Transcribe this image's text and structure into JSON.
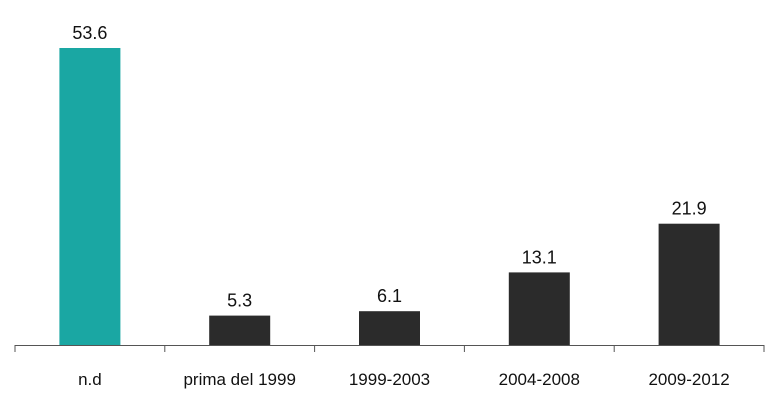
{
  "chart_data": {
    "type": "bar",
    "categories": [
      "n.d",
      "prima del 1999",
      "1999-2003",
      "2004-2008",
      "2009-2012"
    ],
    "values": [
      53.6,
      5.3,
      6.1,
      13.1,
      21.9
    ],
    "ylim": [
      0,
      53.6
    ],
    "colors": [
      "#1aa7a3",
      "#2b2b2b",
      "#2b2b2b",
      "#2b2b2b",
      "#2b2b2b"
    ],
    "axis_color": "#555555",
    "grid": false,
    "legend": false
  }
}
